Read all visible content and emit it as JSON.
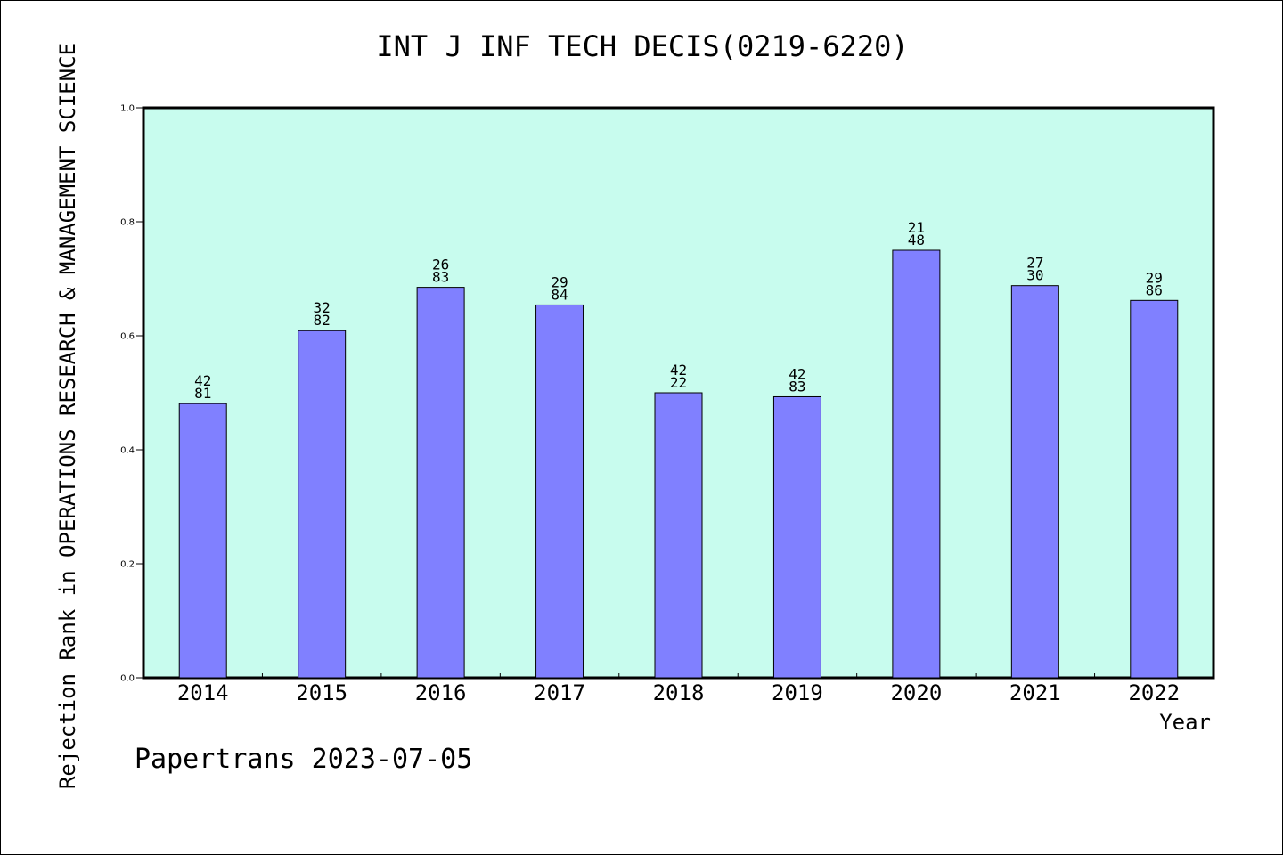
{
  "chart_data": {
    "type": "bar",
    "title": "INT J INF TECH DECIS(0219-6220)",
    "xlabel": "Year",
    "ylabel": "Rejection Rank in OPERATIONS RESEARCH & MANAGEMENT SCIENCE",
    "categories": [
      "2014",
      "2015",
      "2016",
      "2017",
      "2018",
      "2019",
      "2020",
      "2021",
      "2022"
    ],
    "values": [
      0.481,
      0.609,
      0.685,
      0.654,
      0.5,
      0.493,
      0.75,
      0.688,
      0.662
    ],
    "bar_labels": [
      [
        "42",
        "81"
      ],
      [
        "32",
        "82"
      ],
      [
        "26",
        "83"
      ],
      [
        "29",
        "84"
      ],
      [
        "42",
        "22"
      ],
      [
        "42",
        "83"
      ],
      [
        "21",
        "48"
      ],
      [
        "27",
        "30"
      ],
      [
        "29",
        "86"
      ]
    ],
    "ylim": [
      0,
      1.0
    ],
    "yticks": [
      "0.0",
      "0.2",
      "0.4",
      "0.6",
      "0.8",
      "1.0"
    ],
    "grid": false,
    "colors": {
      "plot_background": "#c8fcee",
      "bar_fill": "#8080ff",
      "bar_stroke": "#000000"
    }
  },
  "footer": {
    "watermark": "Papertrans 2023-07-05"
  }
}
